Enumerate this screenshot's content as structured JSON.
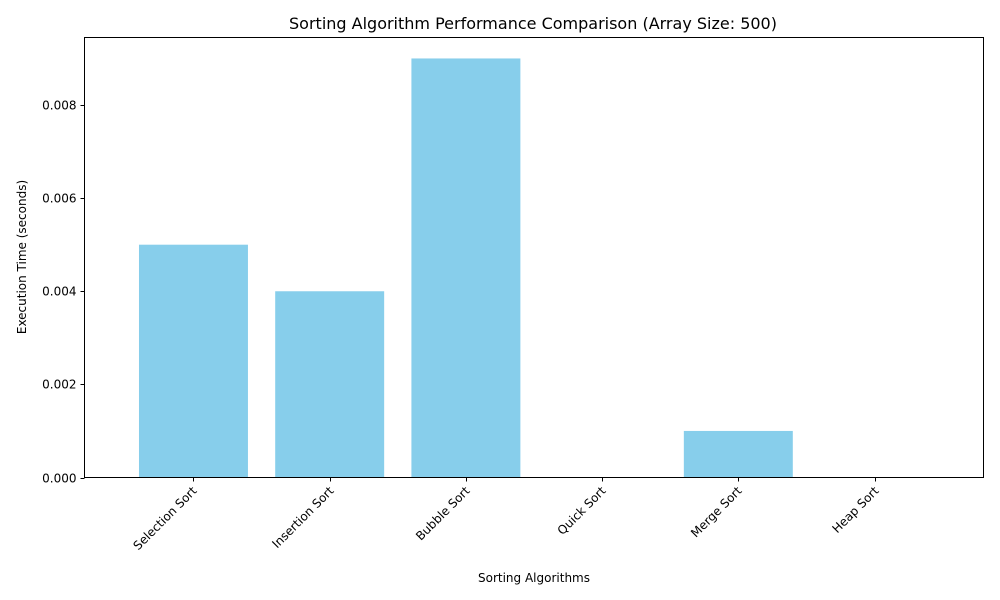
{
  "chart_data": {
    "type": "bar",
    "title": "Sorting Algorithm Performance Comparison (Array Size: 500)",
    "xlabel": "Sorting Algorithms",
    "ylabel": "Execution Time (seconds)",
    "categories": [
      "Selection Sort",
      "Insertion Sort",
      "Bubble Sort",
      "Quick Sort",
      "Merge Sort",
      "Heap Sort"
    ],
    "values": [
      0.005,
      0.004,
      0.009,
      0.0,
      0.001,
      0.0
    ],
    "ylim": [
      0,
      0.00945
    ],
    "yticks": [
      0.0,
      0.002,
      0.004,
      0.006,
      0.008
    ],
    "ytick_labels": [
      "0.000",
      "0.002",
      "0.004",
      "0.006",
      "0.008"
    ],
    "bar_color": "#87CEEB",
    "grid": false,
    "legend": "none"
  }
}
